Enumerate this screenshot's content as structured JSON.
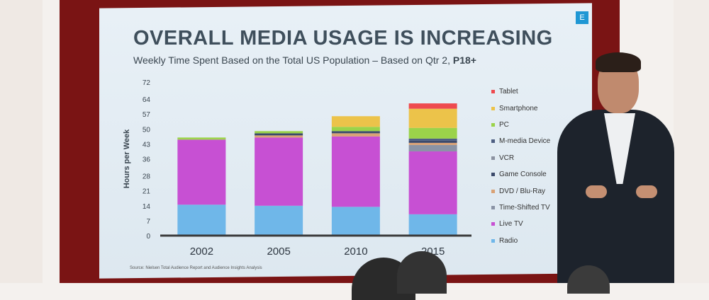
{
  "slide": {
    "badge": "E",
    "title": "OVERALL MEDIA USAGE IS INCREASING",
    "subtitle_main": "Weekly Time Spent Based on the Total US Population – Based on Qtr 2, ",
    "subtitle_bold": "P18+",
    "source": "Source: Nielsen Total Audience Report and Audience Insights Analysis"
  },
  "colors": {
    "Radio": "#6fb7e9",
    "Live TV": "#c750d3",
    "Time-Shifted TV": "#8a93a5",
    "DVD / Blu-Ray": "#d9a276",
    "Game Console": "#3c4a6b",
    "VCR": "#8b92a0",
    "M-media Device": "#4e5f82",
    "PC": "#9bd34a",
    "Smartphone": "#ecc34a",
    "Tablet": "#ee4a4f",
    "axis": "#3a3a3a"
  },
  "chart_data": {
    "type": "bar",
    "stacked": true,
    "categories": [
      "2002",
      "2005",
      "2010",
      "2015"
    ],
    "ylabel": "Hours per Week",
    "yticks": [
      0,
      7,
      14,
      21,
      28,
      36,
      43,
      50,
      57,
      64,
      72
    ],
    "ylim": [
      0,
      72
    ],
    "grid": false,
    "legend_position": "right",
    "series": [
      {
        "name": "Radio",
        "values": [
          14.5,
          14,
          13.5,
          10
        ]
      },
      {
        "name": "Live TV",
        "values": [
          30.5,
          32,
          33,
          29.5
        ]
      },
      {
        "name": "Time-Shifted TV",
        "values": [
          0,
          0,
          0,
          3
        ]
      },
      {
        "name": "DVD / Blu-Ray",
        "values": [
          0,
          1,
          1.5,
          1
        ]
      },
      {
        "name": "Game Console",
        "values": [
          0,
          1,
          1,
          1
        ]
      },
      {
        "name": "VCR",
        "values": [
          0,
          0,
          0,
          0
        ]
      },
      {
        "name": "M-media Device",
        "values": [
          0,
          0,
          0,
          1
        ]
      },
      {
        "name": "PC",
        "values": [
          1,
          1,
          2,
          5
        ]
      },
      {
        "name": "Smartphone",
        "values": [
          0,
          0,
          5,
          9
        ]
      },
      {
        "name": "Tablet",
        "values": [
          0,
          0,
          0,
          2.5
        ]
      }
    ]
  }
}
